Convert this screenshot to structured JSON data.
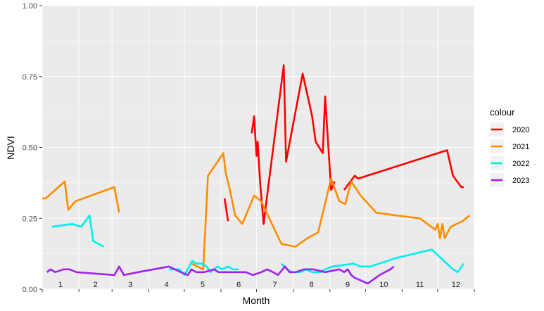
{
  "chart_data": {
    "type": "line",
    "xlabel": "Month",
    "ylabel": "NDVI",
    "xlim": [
      1,
      366
    ],
    "ylim": [
      0,
      1
    ],
    "y_ticks": [
      "0.00",
      "0.25",
      "0.50",
      "0.75",
      "1.00"
    ],
    "y_tick_values": [
      0,
      0.25,
      0.5,
      0.75,
      1.0
    ],
    "month_labels": [
      "1",
      "2",
      "3",
      "4",
      "5",
      "6",
      "7",
      "8",
      "9",
      "10",
      "11",
      "12"
    ],
    "grid": true,
    "legend": {
      "title": "colour",
      "position": "right"
    },
    "series": [
      {
        "name": "2020",
        "color": "#ff0000",
        "segments": [
          [
            [
              155,
              0.32
            ],
            [
              158,
              0.24
            ]
          ],
          [
            [
              178,
              0.55
            ],
            [
              180,
              0.61
            ],
            [
              182,
              0.47
            ],
            [
              183,
              0.52
            ],
            [
              185,
              0.38
            ],
            [
              188,
              0.23
            ],
            [
              191,
              0.33
            ],
            [
              205,
              0.79
            ],
            [
              207,
              0.45
            ],
            [
              221,
              0.76
            ],
            [
              229,
              0.61
            ],
            [
              232,
              0.52
            ],
            [
              238,
              0.48
            ],
            [
              240,
              0.68
            ],
            [
              245,
              0.35
            ],
            [
              248,
              0.38
            ]
          ],
          [
            [
              256,
              0.35
            ],
            [
              265,
              0.4
            ],
            [
              268,
              0.39
            ],
            [
              343,
              0.49
            ],
            [
              348,
              0.4
            ],
            [
              355,
              0.36
            ],
            [
              357,
              0.36
            ]
          ]
        ]
      },
      {
        "name": "2021",
        "color": "#ff8c00",
        "segments": [
          [
            [
              1,
              0.32
            ],
            [
              4,
              0.32
            ],
            [
              20,
              0.38
            ],
            [
              23,
              0.28
            ],
            [
              29,
              0.31
            ],
            [
              62,
              0.36
            ],
            [
              66,
              0.27
            ]
          ],
          [
            [
              127,
              0.09
            ],
            [
              137,
              0.07
            ],
            [
              141,
              0.4
            ],
            [
              154,
              0.48
            ],
            [
              156,
              0.41
            ],
            [
              159,
              0.36
            ],
            [
              164,
              0.26
            ],
            [
              170,
              0.23
            ],
            [
              180,
              0.33
            ],
            [
              186,
              0.31
            ],
            [
              203,
              0.16
            ],
            [
              215,
              0.15
            ],
            [
              225,
              0.18
            ],
            [
              234,
              0.2
            ],
            [
              245,
              0.39
            ],
            [
              252,
              0.31
            ],
            [
              257,
              0.3
            ],
            [
              262,
              0.38
            ],
            [
              270,
              0.33
            ],
            [
              281,
              0.28
            ],
            [
              283,
              0.27
            ],
            [
              300,
              0.26
            ],
            [
              320,
              0.25
            ],
            [
              333,
              0.21
            ],
            [
              335,
              0.23
            ],
            [
              337,
              0.18
            ],
            [
              339,
              0.23
            ],
            [
              341,
              0.18
            ],
            [
              346,
              0.22
            ],
            [
              356,
              0.24
            ],
            [
              362,
              0.26
            ]
          ]
        ]
      },
      {
        "name": "2022",
        "color": "#00eeee",
        "segments": [
          [
            [
              9,
              0.22
            ],
            [
              26,
              0.23
            ],
            [
              34,
              0.22
            ],
            [
              41,
              0.26
            ],
            [
              44,
              0.17
            ],
            [
              53,
              0.15
            ]
          ],
          [
            [
              108,
              0.07
            ],
            [
              117,
              0.07
            ],
            [
              121,
              0.05
            ],
            [
              128,
              0.1
            ],
            [
              131,
              0.09
            ],
            [
              136,
              0.09
            ],
            [
              140,
              0.08
            ],
            [
              143,
              0.06
            ],
            [
              149,
              0.08
            ],
            [
              153,
              0.07
            ],
            [
              158,
              0.08
            ],
            [
              162,
              0.07
            ],
            [
              167,
              0.07
            ]
          ],
          [
            [
              203,
              0.09
            ],
            [
              208,
              0.07
            ],
            [
              212,
              0.06
            ],
            [
              219,
              0.06
            ],
            [
              224,
              0.07
            ],
            [
              229,
              0.06
            ],
            [
              236,
              0.06
            ],
            [
              240,
              0.07
            ],
            [
              246,
              0.08
            ],
            [
              264,
              0.09
            ],
            [
              270,
              0.08
            ],
            [
              278,
              0.08
            ],
            [
              300,
              0.11
            ],
            [
              330,
              0.14
            ],
            [
              348,
              0.07
            ],
            [
              352,
              0.06
            ],
            [
              357,
              0.09
            ]
          ]
        ]
      },
      {
        "name": "2023",
        "color": "#a020f0",
        "segments": [
          [
            [
              5,
              0.06
            ],
            [
              8,
              0.07
            ],
            [
              12,
              0.06
            ],
            [
              19,
              0.07
            ],
            [
              24,
              0.07
            ],
            [
              30,
              0.06
            ],
            [
              62,
              0.05
            ],
            [
              66,
              0.08
            ],
            [
              70,
              0.05
            ],
            [
              82,
              0.06
            ],
            [
              108,
              0.08
            ],
            [
              118,
              0.06
            ],
            [
              124,
              0.05
            ],
            [
              127,
              0.07
            ],
            [
              131,
              0.06
            ],
            [
              138,
              0.06
            ],
            [
              146,
              0.07
            ],
            [
              150,
              0.06
            ],
            [
              155,
              0.06
            ],
            [
              159,
              0.06
            ],
            [
              163,
              0.06
            ],
            [
              173,
              0.06
            ],
            [
              179,
              0.05
            ],
            [
              186,
              0.06
            ],
            [
              191,
              0.07
            ],
            [
              196,
              0.06
            ],
            [
              200,
              0.05
            ],
            [
              206,
              0.08
            ],
            [
              210,
              0.06
            ],
            [
              215,
              0.06
            ],
            [
              222,
              0.07
            ],
            [
              230,
              0.07
            ],
            [
              240,
              0.06
            ],
            [
              252,
              0.07
            ],
            [
              256,
              0.06
            ],
            [
              259,
              0.07
            ],
            [
              262,
              0.05
            ],
            [
              265,
              0.04
            ],
            [
              276,
              0.02
            ],
            [
              286,
              0.05
            ],
            [
              295,
              0.07
            ],
            [
              298,
              0.08
            ]
          ]
        ]
      }
    ]
  }
}
